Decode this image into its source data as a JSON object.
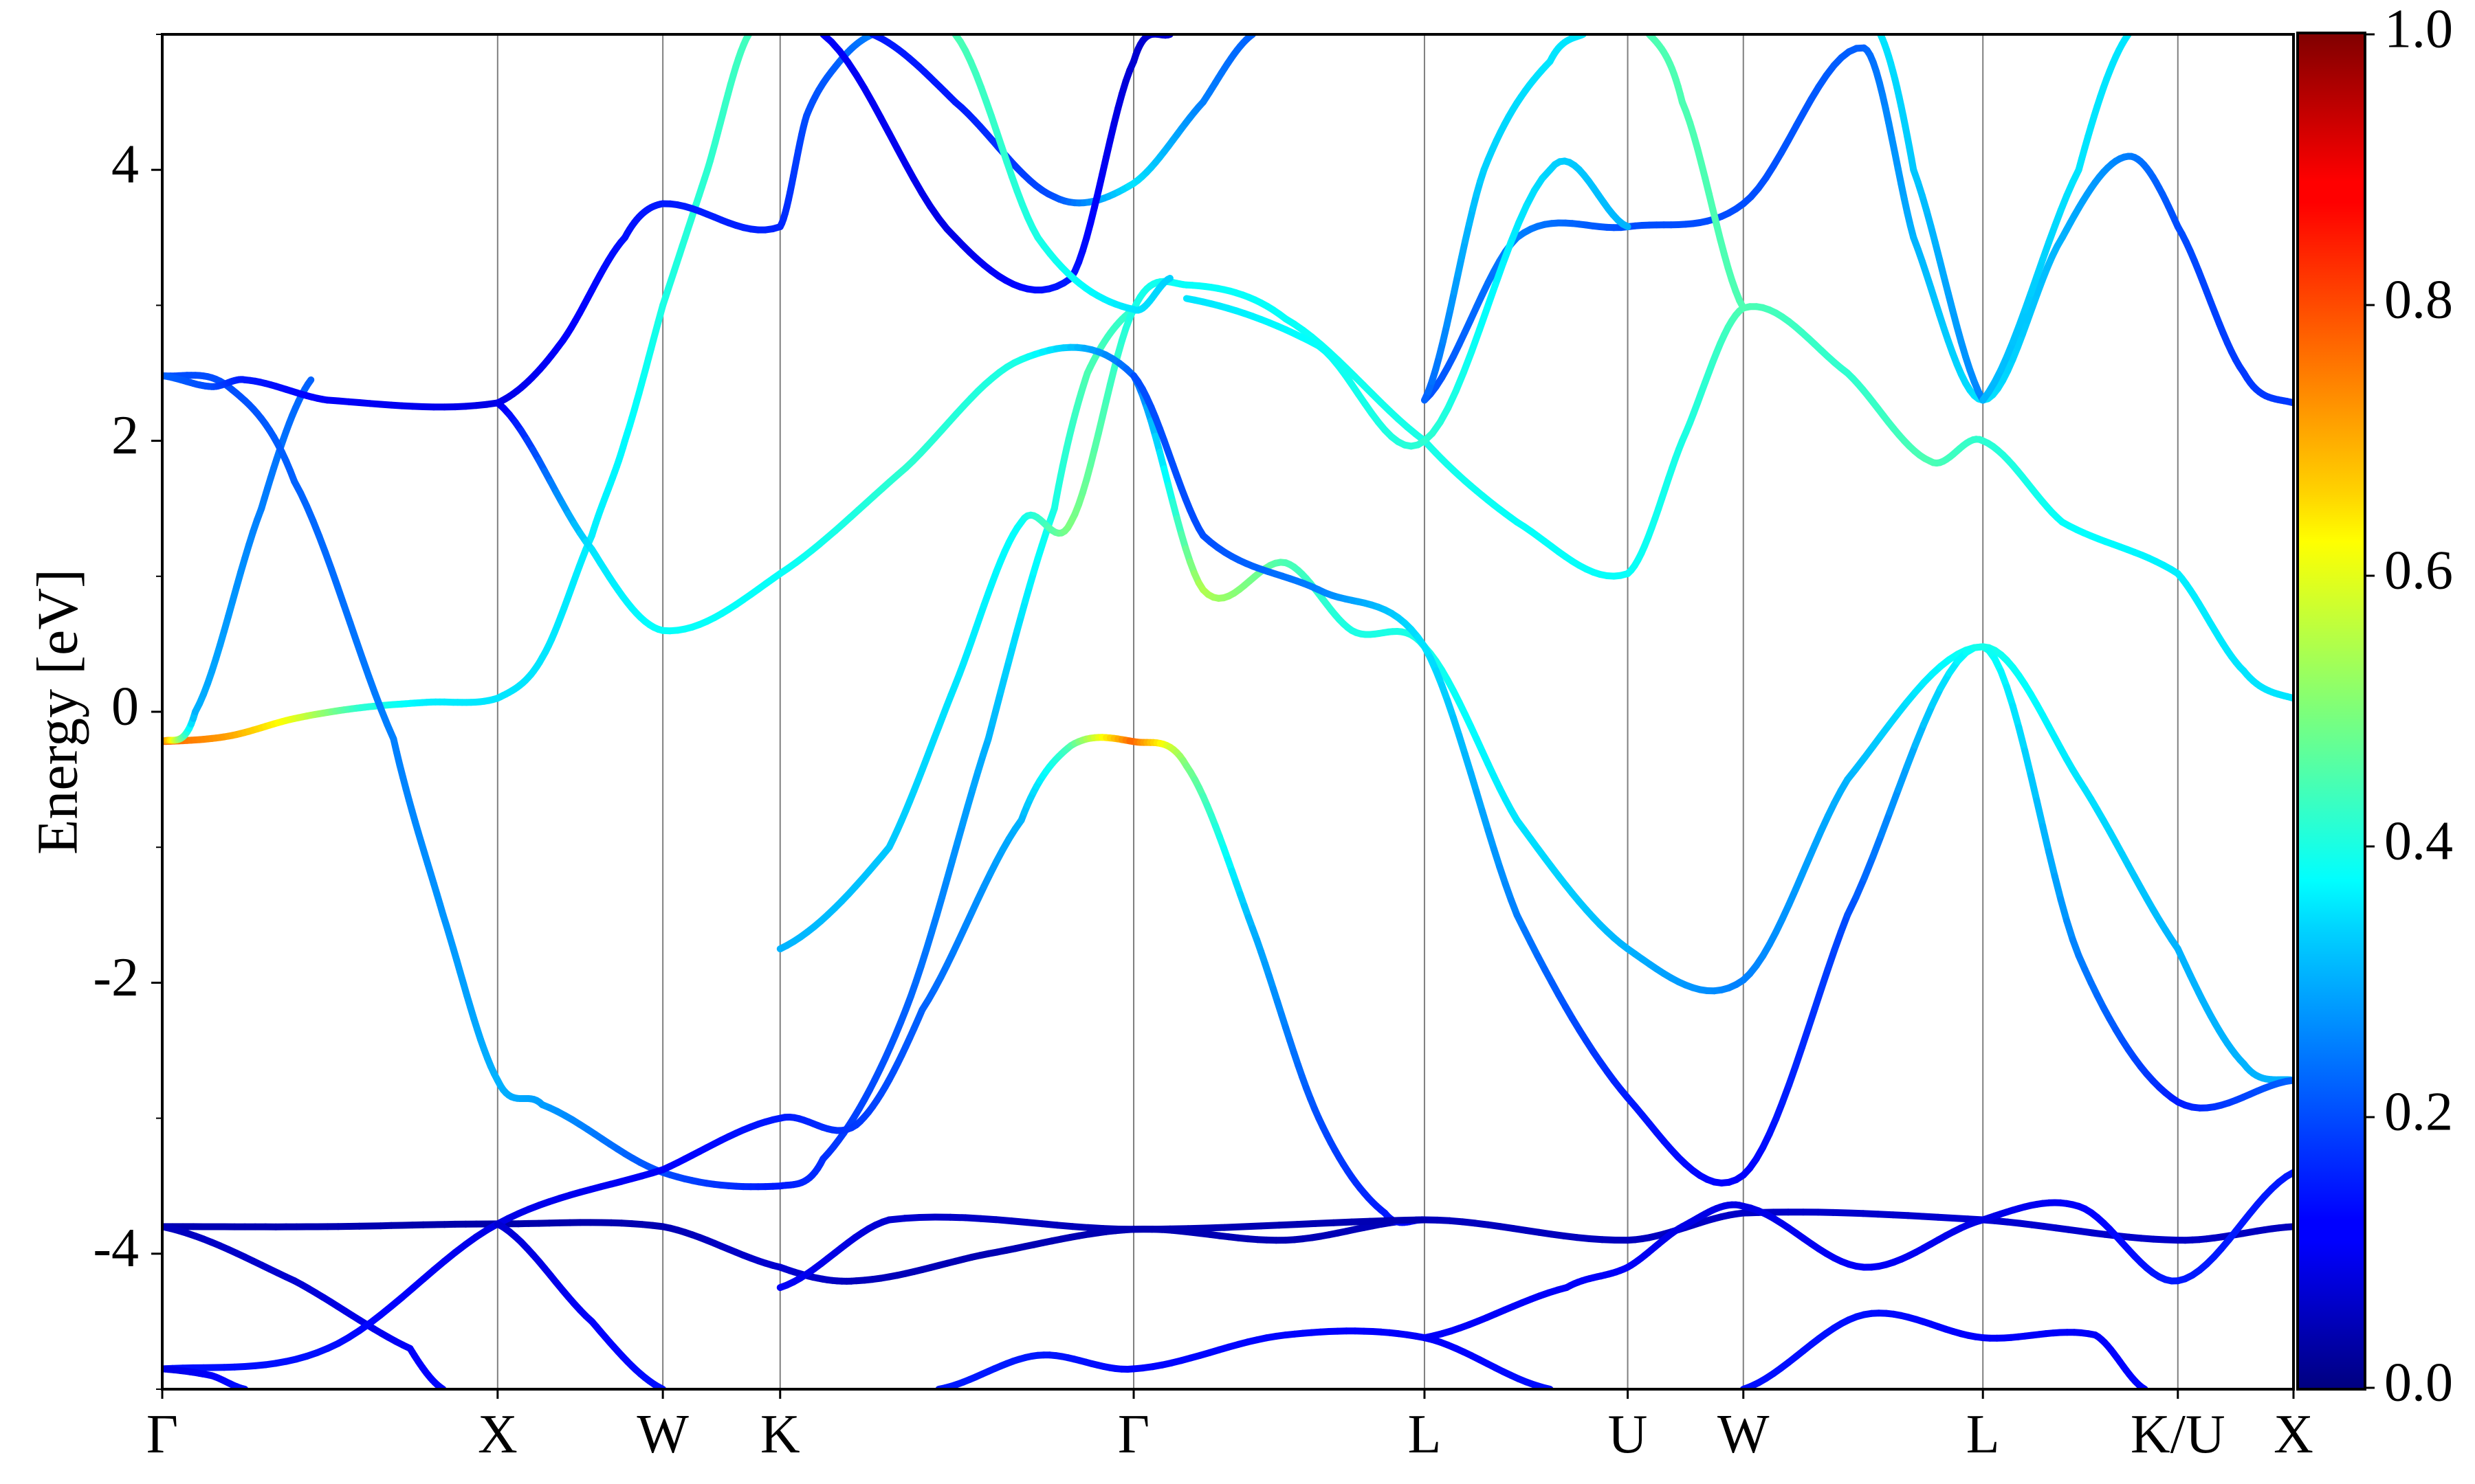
{
  "chart_data": {
    "type": "line",
    "title": "",
    "xlabel": "",
    "ylabel": "Energy [eV]",
    "ylim": [
      -5,
      5
    ],
    "yticks": [
      {
        "value": 4,
        "label": "4"
      },
      {
        "value": 2,
        "label": "2"
      },
      {
        "value": 0,
        "label": "0"
      },
      {
        "value": -2,
        "label": "-2"
      },
      {
        "value": -4,
        "label": "-4"
      }
    ],
    "xlim": [
      0,
      12.9
    ],
    "high_symmetry_points": [
      {
        "label": "Γ",
        "x": 0
      },
      {
        "label": "X",
        "x": 2.03
      },
      {
        "label": "W",
        "x": 3.03
      },
      {
        "label": "K",
        "x": 3.74
      },
      {
        "label": "Γ",
        "x": 5.88
      },
      {
        "label": "L",
        "x": 7.64
      },
      {
        "label": "U",
        "x": 8.87
      },
      {
        "label": "W",
        "x": 9.57
      },
      {
        "label": "L",
        "x": 11.02
      },
      {
        "label": "K/U",
        "x": 12.2
      },
      {
        "label": "X",
        "x": 12.9
      }
    ],
    "colorbar": {
      "colormap": "jet",
      "range": [
        0,
        1
      ],
      "ticks": [
        {
          "value": 1.0,
          "label": "1.0"
        },
        {
          "value": 0.8,
          "label": "0.8"
        },
        {
          "value": 0.6,
          "label": "0.6"
        },
        {
          "value": 0.4,
          "label": "0.4"
        },
        {
          "value": 0.2,
          "label": "0.2"
        },
        {
          "value": 0.0,
          "label": "0.0"
        }
      ]
    },
    "series": [
      {
        "points": [
          [
            0,
            -0.22,
            0.78
          ],
          [
            0.4,
            -0.18,
            0.72
          ],
          [
            0.8,
            -0.05,
            0.6
          ],
          [
            1.2,
            0.03,
            0.42
          ],
          [
            1.6,
            0.07,
            0.36
          ],
          [
            2.03,
            0.1,
            0.35
          ],
          [
            2.3,
            0.4,
            0.35
          ],
          [
            2.6,
            1.3,
            0.36
          ],
          [
            2.8,
            2.0,
            0.37
          ],
          [
            3.03,
            3.0,
            0.4
          ],
          [
            3.3,
            4.0,
            0.42
          ],
          [
            3.55,
            5.0,
            0.44
          ]
        ]
      },
      {
        "points": [
          [
            0,
            -0.22,
            0.78
          ],
          [
            0.2,
            0.0,
            0.3
          ],
          [
            0.6,
            1.5,
            0.25
          ],
          [
            0.9,
            2.45,
            0.22
          ]
        ]
      },
      {
        "points": [
          [
            0,
            2.48,
            0.2
          ],
          [
            0.4,
            2.4,
            0.2
          ],
          [
            0.8,
            1.7,
            0.22
          ],
          [
            1.4,
            -0.2,
            0.25
          ],
          [
            1.7,
            -1.5,
            0.27
          ],
          [
            2.03,
            -2.72,
            0.3
          ],
          [
            2.3,
            -2.9,
            0.28
          ],
          [
            3.03,
            -3.4,
            0.2
          ],
          [
            3.74,
            -3.5,
            0.15
          ],
          [
            4.0,
            -3.3,
            0.17
          ],
          [
            4.5,
            -2.2,
            0.22
          ],
          [
            5.0,
            -0.2,
            0.3
          ],
          [
            5.4,
            1.5,
            0.4
          ],
          [
            5.6,
            2.5,
            0.45
          ],
          [
            5.88,
            2.97,
            0.42
          ]
        ]
      },
      {
        "points": [
          [
            0,
            2.48,
            0.22
          ],
          [
            0.3,
            2.4,
            0.2
          ],
          [
            0.5,
            2.45,
            0.15
          ],
          [
            1.0,
            2.3,
            0.12
          ],
          [
            2.03,
            2.28,
            0.1
          ],
          [
            2.4,
            2.7,
            0.12
          ],
          [
            2.8,
            3.5,
            0.14
          ],
          [
            3.03,
            3.75,
            0.15
          ],
          [
            3.74,
            3.58,
            0.16
          ],
          [
            3.9,
            4.4,
            0.2
          ],
          [
            4.1,
            4.8,
            0.22
          ],
          [
            4.3,
            5.0,
            0.25
          ]
        ]
      },
      {
        "points": [
          [
            0,
            -3.8,
            0.05
          ],
          [
            1.0,
            -3.8,
            0.05
          ],
          [
            2.03,
            -3.78,
            0.04
          ],
          [
            3.03,
            -3.8,
            0.05
          ],
          [
            3.74,
            -4.1,
            0.08
          ],
          [
            4.2,
            -4.2,
            0.06
          ],
          [
            5.0,
            -4.0,
            0.05
          ],
          [
            5.88,
            -3.82,
            0.05
          ],
          [
            6.8,
            -3.9,
            0.05
          ],
          [
            7.64,
            -3.75,
            0.06
          ],
          [
            8.87,
            -3.9,
            0.06
          ],
          [
            9.57,
            -3.7,
            0.07
          ],
          [
            11.02,
            -3.75,
            0.08
          ],
          [
            12.2,
            -3.9,
            0.07
          ],
          [
            12.9,
            -3.8,
            0.06
          ]
        ]
      },
      {
        "points": [
          [
            0,
            -3.8,
            0.06
          ],
          [
            0.8,
            -4.2,
            0.08
          ],
          [
            1.5,
            -4.7,
            0.12
          ],
          [
            1.7,
            -5.0,
            0.13
          ]
        ]
      },
      {
        "points": [
          [
            0,
            -4.85,
            0.14
          ],
          [
            1.0,
            -4.7,
            0.14
          ],
          [
            2.03,
            -3.78,
            0.1
          ],
          [
            3.03,
            -3.38,
            0.12
          ],
          [
            3.74,
            -3.0,
            0.15
          ],
          [
            4.2,
            -3.05,
            0.18
          ],
          [
            4.6,
            -2.2,
            0.22
          ],
          [
            5.2,
            -0.8,
            0.3
          ],
          [
            5.5,
            -0.25,
            0.45
          ],
          [
            5.88,
            -0.22,
            0.78
          ],
          [
            6.2,
            -0.4,
            0.5
          ],
          [
            6.6,
            -1.6,
            0.3
          ],
          [
            7.0,
            -3.0,
            0.2
          ],
          [
            7.4,
            -3.7,
            0.15
          ],
          [
            7.64,
            -3.75,
            0.12
          ]
        ]
      },
      {
        "points": [
          [
            2.03,
            -3.78,
            0.08
          ],
          [
            2.6,
            -4.5,
            0.12
          ],
          [
            3.03,
            -5.0,
            0.14
          ]
        ]
      },
      {
        "points": [
          [
            3.74,
            -4.25,
            0.12
          ],
          [
            4.4,
            -3.75,
            0.08
          ],
          [
            5.88,
            -3.82,
            0.05
          ],
          [
            7.64,
            -3.75,
            0.05
          ]
        ]
      },
      {
        "points": [
          [
            3.74,
            -1.75,
            0.3
          ],
          [
            4.4,
            -1.0,
            0.32
          ],
          [
            4.8,
            0.2,
            0.35
          ],
          [
            5.2,
            1.4,
            0.38
          ],
          [
            5.5,
            1.4,
            0.5
          ],
          [
            5.88,
            2.97,
            0.4
          ],
          [
            6.2,
            3.15,
            0.38
          ],
          [
            6.8,
            2.9,
            0.38
          ],
          [
            7.64,
            2.0,
            0.4
          ],
          [
            8.2,
            1.4,
            0.38
          ],
          [
            8.87,
            1.02,
            0.38
          ],
          [
            9.2,
            2.0,
            0.4
          ],
          [
            9.57,
            2.98,
            0.45
          ],
          [
            10.2,
            2.5,
            0.42
          ],
          [
            10.7,
            1.85,
            0.45
          ],
          [
            11.02,
            2.0,
            0.42
          ],
          [
            11.5,
            1.4,
            0.38
          ],
          [
            12.2,
            1.02,
            0.36
          ],
          [
            12.6,
            0.3,
            0.35
          ],
          [
            12.9,
            0.1,
            0.35
          ]
        ]
      },
      {
        "points": [
          [
            2.03,
            2.28,
            0.1
          ],
          [
            2.6,
            1.2,
            0.35
          ],
          [
            3.03,
            0.6,
            0.38
          ],
          [
            3.74,
            1.02,
            0.38
          ],
          [
            4.5,
            1.8,
            0.42
          ],
          [
            5.2,
            2.6,
            0.4
          ],
          [
            5.88,
            2.48,
            0.22
          ],
          [
            6.3,
            0.9,
            0.55
          ],
          [
            6.8,
            1.1,
            0.45
          ],
          [
            7.2,
            0.6,
            0.4
          ],
          [
            7.64,
            0.48,
            0.4
          ],
          [
            8.2,
            -0.8,
            0.35
          ],
          [
            8.87,
            -1.75,
            0.3
          ],
          [
            9.57,
            -1.98,
            0.25
          ],
          [
            10.2,
            -0.5,
            0.3
          ],
          [
            11.02,
            0.48,
            0.4
          ],
          [
            11.6,
            -0.5,
            0.35
          ],
          [
            12.2,
            -1.75,
            0.3
          ],
          [
            12.6,
            -2.6,
            0.3
          ],
          [
            12.9,
            -2.72,
            0.3
          ]
        ]
      },
      {
        "points": [
          [
            5.88,
            2.48,
            0.2
          ],
          [
            6.3,
            1.3,
            0.2
          ],
          [
            7.0,
            0.9,
            0.25
          ],
          [
            7.64,
            0.48,
            0.35
          ],
          [
            8.2,
            -1.5,
            0.25
          ],
          [
            8.87,
            -2.85,
            0.15
          ],
          [
            9.57,
            -3.42,
            0.12
          ],
          [
            10.2,
            -1.5,
            0.2
          ],
          [
            11.02,
            0.48,
            0.4
          ],
          [
            11.6,
            -1.8,
            0.25
          ],
          [
            12.2,
            -2.88,
            0.15
          ],
          [
            12.9,
            -2.72,
            0.22
          ]
        ]
      },
      {
        "points": [
          [
            7.64,
            2.3,
            0.2
          ],
          [
            8.2,
            3.5,
            0.25
          ],
          [
            8.87,
            3.58,
            0.2
          ],
          [
            9.57,
            3.75,
            0.2
          ],
          [
            10.3,
            4.9,
            0.22
          ],
          [
            10.6,
            3.5,
            0.3
          ],
          [
            11.02,
            2.3,
            0.35
          ],
          [
            11.5,
            3.5,
            0.3
          ],
          [
            11.9,
            4.1,
            0.25
          ],
          [
            12.2,
            3.58,
            0.2
          ],
          [
            12.6,
            2.5,
            0.18
          ],
          [
            12.9,
            2.28,
            0.18
          ]
        ]
      },
      {
        "points": [
          [
            7.64,
            2.3,
            0.22
          ],
          [
            8.0,
            4.0,
            0.33
          ],
          [
            8.4,
            4.8,
            0.35
          ],
          [
            8.6,
            5.0,
            0.35
          ]
        ]
      },
      {
        "points": [
          [
            8.87,
            3.58,
            0.3
          ],
          [
            8.4,
            4.0,
            0.33
          ],
          [
            7.64,
            2.0,
            0.42
          ],
          [
            7.0,
            2.7,
            0.38
          ],
          [
            6.2,
            3.05,
            0.35
          ]
        ]
      },
      {
        "points": [
          [
            9.57,
            2.98,
            0.45
          ],
          [
            9.2,
            4.5,
            0.45
          ],
          [
            9.0,
            5.0,
            0.45
          ]
        ]
      },
      {
        "points": [
          [
            11.02,
            2.3,
            0.25
          ],
          [
            10.6,
            4.0,
            0.32
          ],
          [
            10.4,
            5.0,
            0.35
          ]
        ]
      },
      {
        "points": [
          [
            11.02,
            2.3,
            0.3
          ],
          [
            11.6,
            4.0,
            0.35
          ],
          [
            11.9,
            5.0,
            0.35
          ]
        ]
      },
      {
        "points": [
          [
            4.3,
            5.0,
            0.15
          ],
          [
            4.8,
            4.5,
            0.15
          ],
          [
            5.4,
            3.8,
            0.2
          ],
          [
            5.88,
            3.9,
            0.35
          ],
          [
            6.3,
            4.5,
            0.25
          ],
          [
            6.6,
            5.0,
            0.22
          ]
        ]
      },
      {
        "points": [
          [
            4.0,
            5.0,
            0.12
          ],
          [
            4.8,
            3.5,
            0.1
          ],
          [
            5.5,
            3.2,
            0.15
          ],
          [
            5.88,
            4.8,
            0.08
          ],
          [
            6.1,
            5.0,
            0.08
          ]
        ]
      },
      {
        "points": [
          [
            4.8,
            5.0,
            0.45
          ],
          [
            5.3,
            3.5,
            0.4
          ],
          [
            5.88,
            2.97,
            0.35
          ],
          [
            6.1,
            3.2,
            0.33
          ]
        ]
      },
      {
        "points": [
          [
            4.7,
            -5.0,
            0.15
          ],
          [
            5.3,
            -4.75,
            0.15
          ],
          [
            5.88,
            -4.85,
            0.13
          ],
          [
            6.8,
            -4.6,
            0.13
          ],
          [
            7.64,
            -4.62,
            0.12
          ],
          [
            8.4,
            -5.0,
            0.14
          ]
        ]
      },
      {
        "points": [
          [
            7.64,
            -4.62,
            0.12
          ],
          [
            8.5,
            -4.25,
            0.12
          ],
          [
            8.87,
            -4.1,
            0.12
          ],
          [
            9.2,
            -3.8,
            0.1
          ],
          [
            9.57,
            -3.65,
            0.1
          ],
          [
            10.3,
            -4.1,
            0.12
          ],
          [
            11.02,
            -3.75,
            0.1
          ],
          [
            11.6,
            -3.65,
            0.12
          ],
          [
            12.2,
            -4.2,
            0.15
          ],
          [
            12.9,
            -3.4,
            0.15
          ]
        ]
      },
      {
        "points": [
          [
            9.57,
            -5.0,
            0.14
          ],
          [
            10.3,
            -4.45,
            0.14
          ],
          [
            11.02,
            -4.62,
            0.12
          ],
          [
            11.7,
            -4.6,
            0.12
          ],
          [
            12.0,
            -5.0,
            0.13
          ]
        ]
      },
      {
        "points": [
          [
            0,
            -4.85,
            0.1
          ],
          [
            0.3,
            -4.9,
            0.12
          ],
          [
            0.5,
            -5.0,
            0.14
          ]
        ]
      }
    ]
  }
}
